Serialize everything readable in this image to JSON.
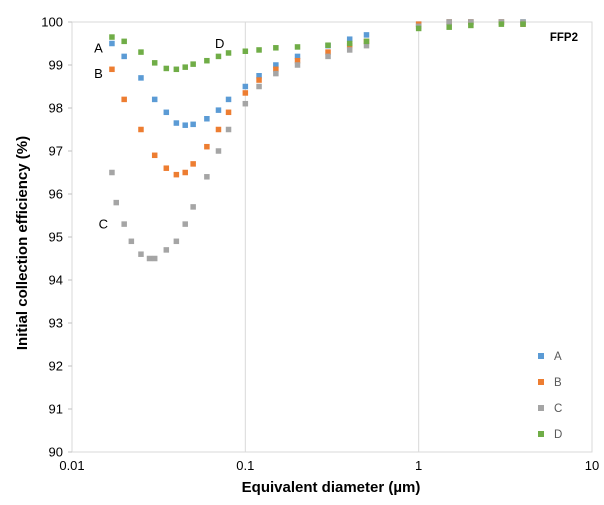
{
  "chart_data": {
    "type": "scatter",
    "xlabel": "Equivalent diameter (µm)",
    "ylabel": "Initial collection efficiency (%)",
    "xscale": "log",
    "xlim": [
      0.01,
      10
    ],
    "ylim": [
      90,
      100
    ],
    "x_ticks": [
      0.01,
      0.1,
      1,
      10
    ],
    "x_tick_labels": [
      "0.01",
      "0.1",
      "1",
      "10"
    ],
    "y_ticks": [
      90,
      91,
      92,
      93,
      94,
      95,
      96,
      97,
      98,
      99,
      100
    ],
    "y_tick_labels": [
      "90",
      "91",
      "92",
      "93",
      "94",
      "95",
      "96",
      "97",
      "98",
      "99",
      "100"
    ],
    "grid": "vertical major gridlines",
    "legend_placement": "bottom-right",
    "annotations": [
      {
        "text": "FFP2",
        "style": "bold"
      },
      {
        "text": "A",
        "x": 0.015,
        "y": 99.4
      },
      {
        "text": "B",
        "x": 0.015,
        "y": 98.8
      },
      {
        "text": "C",
        "x": 0.016,
        "y": 95.3
      },
      {
        "text": "D",
        "x": 0.075,
        "y": 99.5
      }
    ],
    "series": [
      {
        "name": "A",
        "color": "#5b9bd5",
        "x": [
          0.017,
          0.02,
          0.025,
          0.03,
          0.035,
          0.04,
          0.045,
          0.05,
          0.06,
          0.07,
          0.08,
          0.1,
          0.12,
          0.15,
          0.2,
          0.3,
          0.4,
          0.5,
          1,
          1.5,
          2,
          3,
          4
        ],
        "y": [
          99.5,
          99.2,
          98.7,
          98.2,
          97.9,
          97.65,
          97.6,
          97.62,
          97.75,
          97.95,
          98.2,
          98.5,
          98.75,
          99.0,
          99.2,
          99.45,
          99.6,
          99.7,
          99.95,
          100.0,
          100.0,
          100.0,
          100.0
        ]
      },
      {
        "name": "B",
        "color": "#ed7d31",
        "x": [
          0.017,
          0.02,
          0.025,
          0.03,
          0.035,
          0.04,
          0.045,
          0.05,
          0.06,
          0.07,
          0.08,
          0.1,
          0.12,
          0.15,
          0.2,
          0.3,
          0.4,
          0.5,
          1,
          1.5,
          2,
          3,
          4
        ],
        "y": [
          98.9,
          98.2,
          97.5,
          96.9,
          96.6,
          96.45,
          96.5,
          96.7,
          97.1,
          97.5,
          97.9,
          98.35,
          98.65,
          98.9,
          99.1,
          99.3,
          99.45,
          99.55,
          99.95,
          100.0,
          100.0,
          100.0,
          99.95
        ]
      },
      {
        "name": "C",
        "color": "#a5a5a5",
        "x": [
          0.017,
          0.018,
          0.02,
          0.022,
          0.025,
          0.028,
          0.03,
          0.035,
          0.04,
          0.045,
          0.05,
          0.06,
          0.07,
          0.08,
          0.1,
          0.12,
          0.15,
          0.2,
          0.3,
          0.4,
          0.5,
          1,
          1.5,
          2,
          3,
          4
        ],
        "y": [
          96.5,
          95.8,
          95.3,
          94.9,
          94.6,
          94.5,
          94.5,
          94.7,
          94.9,
          95.3,
          95.7,
          96.4,
          97.0,
          97.5,
          98.1,
          98.5,
          98.8,
          99.0,
          99.2,
          99.35,
          99.45,
          99.9,
          100.0,
          100.0,
          100.0,
          100.0
        ]
      },
      {
        "name": "D",
        "color": "#70ad47",
        "x": [
          0.017,
          0.02,
          0.025,
          0.03,
          0.035,
          0.04,
          0.045,
          0.05,
          0.06,
          0.07,
          0.08,
          0.1,
          0.12,
          0.15,
          0.2,
          0.3,
          0.4,
          0.5,
          1,
          1.5,
          2,
          3,
          4
        ],
        "y": [
          99.65,
          99.55,
          99.3,
          99.05,
          98.92,
          98.9,
          98.95,
          99.02,
          99.1,
          99.2,
          99.28,
          99.32,
          99.35,
          99.4,
          99.42,
          99.46,
          99.5,
          99.55,
          99.85,
          99.88,
          99.92,
          99.95,
          99.95
        ]
      }
    ]
  }
}
